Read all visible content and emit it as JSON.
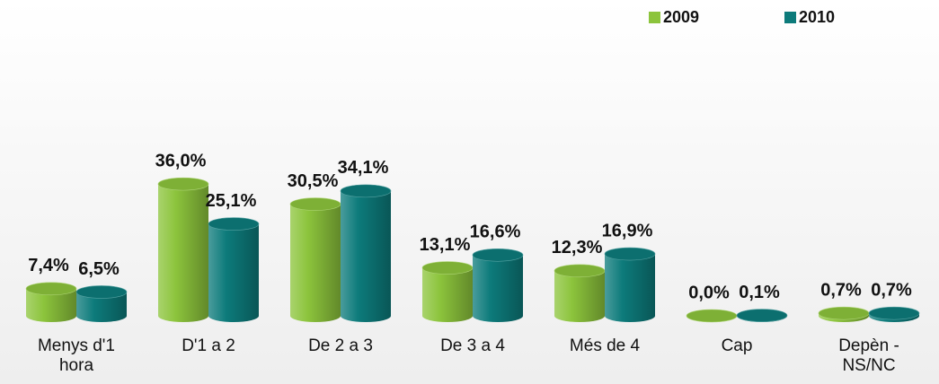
{
  "chart_data": {
    "type": "bar",
    "categories": [
      "Menys d'1 hora",
      "D'1 a 2",
      "De 2 a 3",
      "De 3 a 4",
      "Més de 4",
      "Cap",
      "Depèn - NS/NC"
    ],
    "series": [
      {
        "name": "2009",
        "color": "#8cc43c",
        "values": [
          7.4,
          36.0,
          30.5,
          13.1,
          12.3,
          0.0,
          0.7
        ],
        "value_labels": [
          "7,4%",
          "36,0%",
          "30,5%",
          "13,1%",
          "12,3%",
          "0,0%",
          "0,7%"
        ]
      },
      {
        "name": "2010",
        "color": "#0d7b7b",
        "values": [
          6.5,
          25.1,
          34.1,
          16.6,
          16.9,
          0.1,
          0.7
        ],
        "value_labels": [
          "6,5%",
          "25,1%",
          "34,1%",
          "16,6%",
          "16,9%",
          "0,1%",
          "0,7%"
        ]
      }
    ],
    "legend": "top-right"
  }
}
